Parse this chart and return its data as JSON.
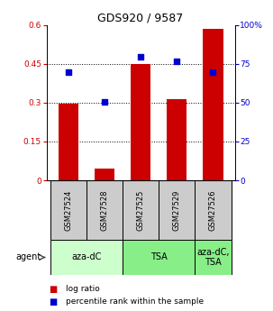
{
  "title": "GDS920 / 9587",
  "samples": [
    "GSM27524",
    "GSM27528",
    "GSM27525",
    "GSM27529",
    "GSM27526"
  ],
  "log_ratio": [
    0.295,
    0.045,
    0.45,
    0.315,
    0.585
  ],
  "percentile_rank": [
    69.5,
    50.5,
    79.5,
    76.5,
    69.5
  ],
  "ylim_left": [
    0,
    0.6
  ],
  "ylim_right": [
    0,
    100
  ],
  "yticks_left": [
    0,
    0.15,
    0.3,
    0.45,
    0.6
  ],
  "yticks_right": [
    0,
    25,
    50,
    75,
    100
  ],
  "bar_color": "#cc0000",
  "dot_color": "#0000cc",
  "agent_groups": [
    {
      "label": "aza-dC",
      "span": [
        0,
        2
      ],
      "color": "#ccffcc"
    },
    {
      "label": "TSA",
      "span": [
        2,
        4
      ],
      "color": "#88ee88"
    },
    {
      "label": "aza-dC,\nTSA",
      "span": [
        4,
        5
      ],
      "color": "#88ee88"
    }
  ],
  "agent_label": "agent",
  "legend_bar_label": "log ratio",
  "legend_dot_label": "percentile rank within the sample",
  "title_fontsize": 9,
  "tick_fontsize": 6.5,
  "sample_label_fontsize": 6,
  "agent_fontsize": 7,
  "legend_fontsize": 6.5,
  "background_color": "#ffffff",
  "sample_box_color": "#cccccc",
  "bar_width": 0.55
}
